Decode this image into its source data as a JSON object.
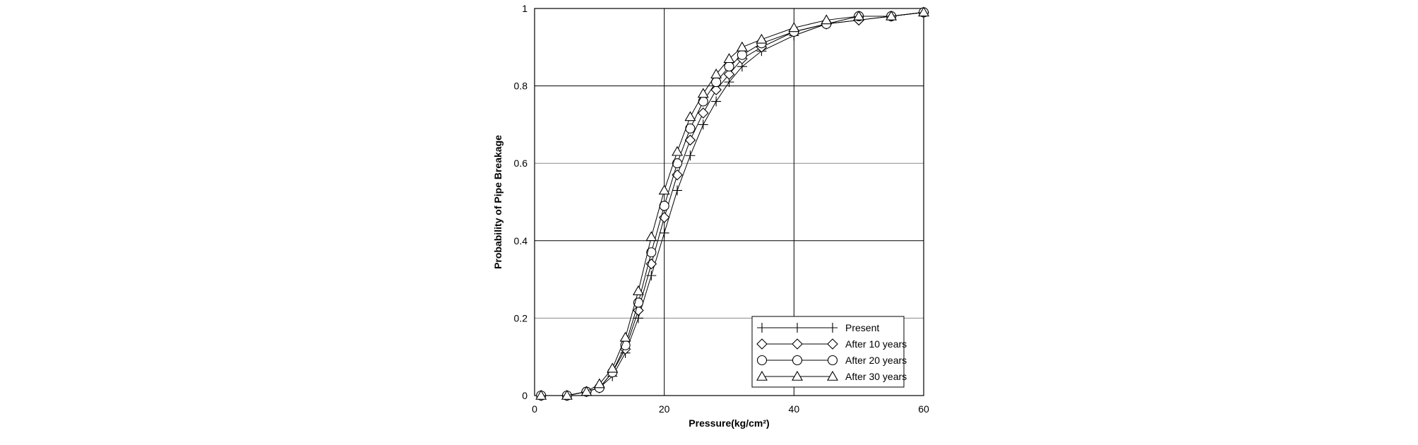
{
  "chart_data": {
    "type": "line",
    "xlabel": "Pressure(kg/cm²)",
    "ylabel": "Probability of Pipe Breakage",
    "xlim": [
      0,
      60
    ],
    "ylim": [
      0,
      1
    ],
    "xticks": [
      0,
      20,
      40,
      60
    ],
    "xtick_labels": [
      "0",
      "20",
      "40",
      "60"
    ],
    "yticks": [
      0,
      0.2,
      0.4,
      0.6,
      0.8,
      1
    ],
    "ytick_labels": [
      "0",
      "0.2",
      "0.4",
      "0.6",
      "0.8",
      "1"
    ],
    "grid": true,
    "legend_position": "bottom-right",
    "line_color": "#000000",
    "series": [
      {
        "name": "Present",
        "marker": "plus",
        "x": [
          1,
          5,
          8,
          10,
          12,
          14,
          16,
          18,
          20,
          22,
          24,
          26,
          28,
          30,
          32,
          35,
          40,
          45,
          50,
          55,
          60
        ],
        "y": [
          0.0,
          0.0,
          0.01,
          0.02,
          0.05,
          0.11,
          0.2,
          0.31,
          0.42,
          0.53,
          0.62,
          0.7,
          0.76,
          0.81,
          0.85,
          0.89,
          0.93,
          0.96,
          0.97,
          0.98,
          0.99
        ]
      },
      {
        "name": "After 10 years",
        "marker": "diamond",
        "x": [
          1,
          5,
          8,
          10,
          12,
          14,
          16,
          18,
          20,
          22,
          24,
          26,
          28,
          30,
          32,
          35,
          40,
          45,
          50,
          55,
          60
        ],
        "y": [
          0.0,
          0.0,
          0.01,
          0.02,
          0.06,
          0.12,
          0.22,
          0.34,
          0.46,
          0.57,
          0.66,
          0.73,
          0.79,
          0.83,
          0.87,
          0.9,
          0.94,
          0.96,
          0.97,
          0.98,
          0.99
        ]
      },
      {
        "name": "After 20 years",
        "marker": "circle",
        "x": [
          1,
          5,
          8,
          10,
          12,
          14,
          16,
          18,
          20,
          22,
          24,
          26,
          28,
          30,
          32,
          35,
          40,
          45,
          50,
          55,
          60
        ],
        "y": [
          0.0,
          0.0,
          0.01,
          0.02,
          0.06,
          0.13,
          0.24,
          0.37,
          0.49,
          0.6,
          0.69,
          0.76,
          0.81,
          0.85,
          0.88,
          0.91,
          0.94,
          0.96,
          0.98,
          0.98,
          0.99
        ]
      },
      {
        "name": "After 30 years",
        "marker": "triangle",
        "x": [
          1,
          5,
          8,
          10,
          12,
          14,
          16,
          18,
          20,
          22,
          24,
          26,
          28,
          30,
          32,
          35,
          40,
          45,
          50,
          55,
          60
        ],
        "y": [
          0.0,
          0.0,
          0.01,
          0.03,
          0.07,
          0.15,
          0.27,
          0.41,
          0.53,
          0.63,
          0.72,
          0.78,
          0.83,
          0.87,
          0.9,
          0.92,
          0.95,
          0.97,
          0.98,
          0.98,
          0.99
        ]
      }
    ]
  }
}
